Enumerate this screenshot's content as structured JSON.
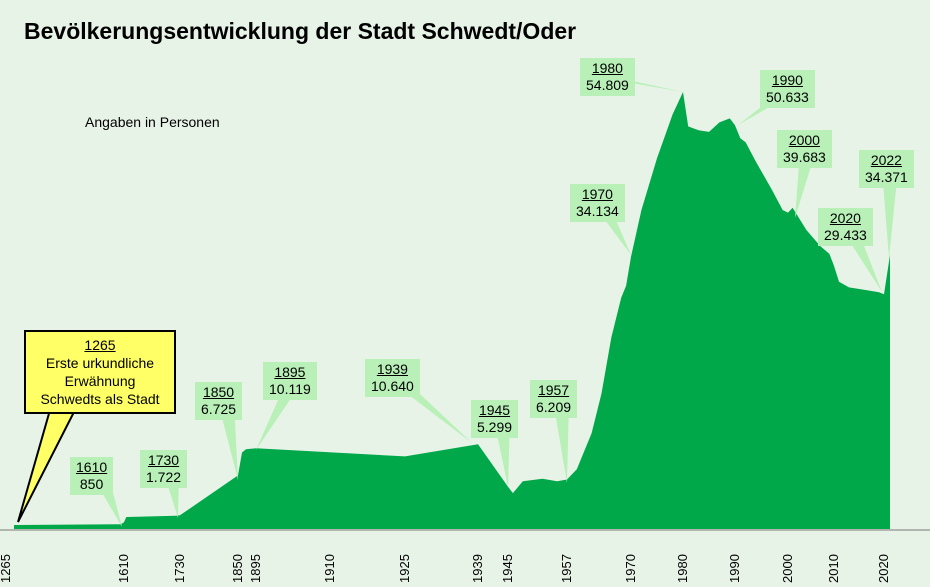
{
  "chart_data": {
    "type": "area",
    "title": "Bevölkerungsentwicklung der Stadt Schwedt/Oder",
    "subtitle": "Angaben in Personen",
    "xlabel": "",
    "ylabel": "",
    "x_ticks": [
      "1265",
      "1610",
      "1730",
      "1850",
      "1895",
      "1910",
      "1925",
      "1939",
      "1945",
      "1957",
      "1970",
      "1980",
      "1990",
      "2000",
      "2010",
      "2020"
    ],
    "ylim": [
      0,
      55000
    ],
    "grid": false,
    "color": "#00a84a",
    "points": [
      [
        1265,
        500
      ],
      [
        1600,
        600
      ],
      [
        1610,
        850
      ],
      [
        1615,
        1500
      ],
      [
        1720,
        1650
      ],
      [
        1730,
        1722
      ],
      [
        1850,
        6725
      ],
      [
        1860,
        9600
      ],
      [
        1870,
        10000
      ],
      [
        1895,
        10119
      ],
      [
        1925,
        9100
      ],
      [
        1939,
        10640
      ],
      [
        1945,
        5299
      ],
      [
        1946,
        4500
      ],
      [
        1948,
        6000
      ],
      [
        1952,
        6300
      ],
      [
        1955,
        6000
      ],
      [
        1957,
        6209
      ],
      [
        1959,
        7500
      ],
      [
        1962,
        12000
      ],
      [
        1964,
        17000
      ],
      [
        1966,
        24000
      ],
      [
        1968,
        29000
      ],
      [
        1969,
        30500
      ],
      [
        1970,
        34134
      ],
      [
        1972,
        40000
      ],
      [
        1975,
        46500
      ],
      [
        1978,
        52000
      ],
      [
        1980,
        54809
      ],
      [
        1981,
        50500
      ],
      [
        1983,
        50000
      ],
      [
        1985,
        49800
      ],
      [
        1987,
        51000
      ],
      [
        1989,
        51500
      ],
      [
        1990,
        50633
      ],
      [
        1991,
        49000
      ],
      [
        1992,
        48500
      ],
      [
        1994,
        46000
      ],
      [
        1997,
        42500
      ],
      [
        1999,
        40000
      ],
      [
        2000,
        39683
      ],
      [
        2001,
        40300
      ],
      [
        2004,
        37500
      ],
      [
        2007,
        35500
      ],
      [
        2009,
        34500
      ],
      [
        2010,
        33000
      ],
      [
        2011,
        31000
      ],
      [
        2013,
        30300
      ],
      [
        2016,
        30000
      ],
      [
        2019,
        29700
      ],
      [
        2020,
        29433
      ],
      [
        2022,
        34371
      ]
    ],
    "annotations": [
      {
        "year": "1610",
        "value": "850"
      },
      {
        "year": "1730",
        "value": "1.722"
      },
      {
        "year": "1850",
        "value": "6.725"
      },
      {
        "year": "1895",
        "value": "10.119"
      },
      {
        "year": "1939",
        "value": "10.640"
      },
      {
        "year": "1945",
        "value": "5.299"
      },
      {
        "year": "1957",
        "value": "6.209"
      },
      {
        "year": "1970",
        "value": "34.134"
      },
      {
        "year": "1980",
        "value": "54.809"
      },
      {
        "year": "1990",
        "value": "50.633"
      },
      {
        "year": "2000",
        "value": "39.683"
      },
      {
        "year": "2020",
        "value": "29.433"
      },
      {
        "year": "2022",
        "value": "34.371"
      }
    ],
    "note": {
      "year": "1265",
      "lines": [
        "Erste urkundliche",
        "Erwähnung",
        "Schwedts als Stadt"
      ]
    }
  }
}
